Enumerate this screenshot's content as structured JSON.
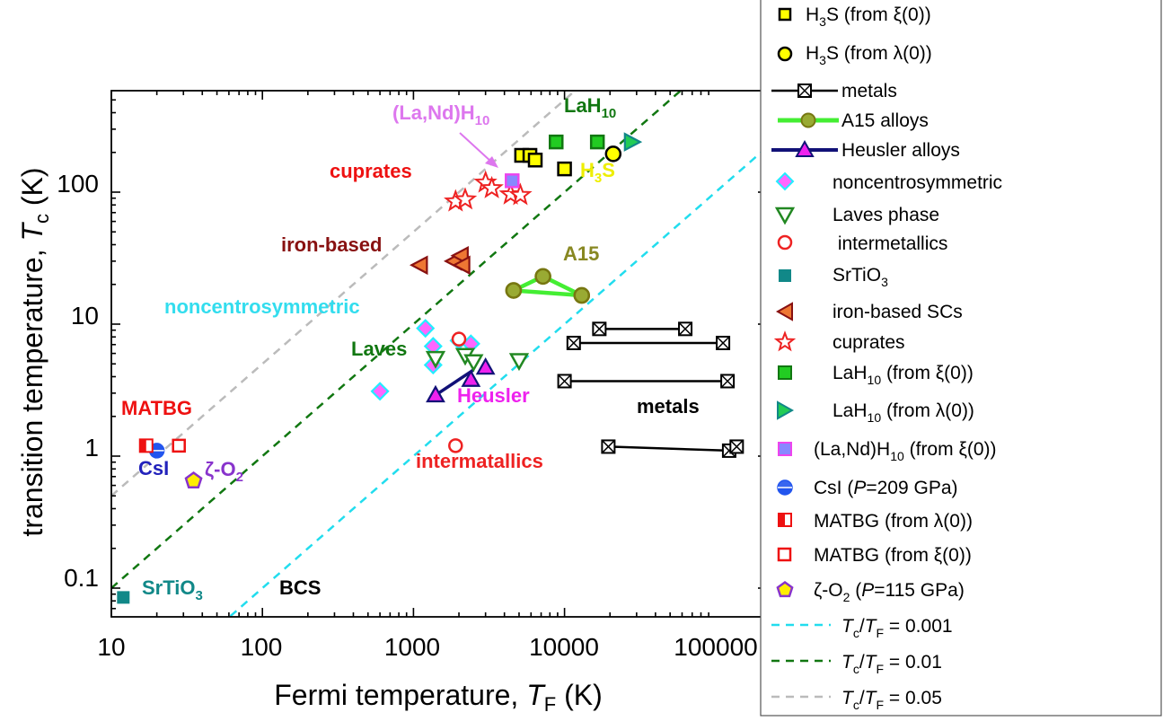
{
  "chart_data": {
    "type": "scatter",
    "xlabel": "Fermi temperature, T_F (K)",
    "ylabel": "transition temperature, T_c (K)",
    "xscale": "log",
    "yscale": "log",
    "xlim": [
      10,
      200000
    ],
    "ylim": [
      0.05,
      500
    ],
    "x_ticks": [
      10,
      100,
      1000,
      10000,
      100000
    ],
    "x_tick_labels": [
      "10",
      "100",
      "1000",
      "10000",
      "100000"
    ],
    "y_ticks": [
      0.1,
      1,
      10,
      100
    ],
    "y_tick_labels": [
      "0.1",
      "1",
      "10",
      "100"
    ],
    "grid": false,
    "legend_position": "outside-right",
    "reference_lines": [
      {
        "ratio": 0.001,
        "color": "#22ddee",
        "label": "T_c/T_F = 0.001"
      },
      {
        "ratio": 0.01,
        "color": "#117711",
        "label": "T_c/T_F = 0.01"
      },
      {
        "ratio": 0.05,
        "color": "#bbbbbb",
        "label": "T_c/T_F = 0.05"
      }
    ],
    "series": [
      {
        "name": "H3S (from ξ(0))",
        "marker": "square",
        "fill": "#ffff00",
        "stroke": "#000000",
        "points": [
          [
            5200,
            190
          ],
          [
            5900,
            190
          ],
          [
            6400,
            175
          ],
          [
            10000,
            150
          ]
        ]
      },
      {
        "name": "H3S (from λ(0))",
        "marker": "circle",
        "fill": "#ffff00",
        "stroke": "#000000",
        "points": [
          [
            21000,
            195
          ]
        ]
      },
      {
        "name": "metals",
        "marker": "boxx",
        "fill": "#ffffff",
        "stroke": "#000000",
        "segments": [
          [
            [
              17000,
              9.2
            ],
            [
              63000,
              9.2
            ]
          ],
          [
            [
              11500,
              7.2
            ],
            [
              112000,
              7.2
            ]
          ],
          [
            [
              10000,
              3.7
            ],
            [
              120000,
              3.7
            ]
          ],
          [
            [
              19500,
              1.18
            ],
            [
              123000,
              1.1
            ],
            [
              138000,
              1.18
            ]
          ]
        ]
      },
      {
        "name": "A15 alloys",
        "marker": "circle",
        "fill": "#99aa33",
        "stroke": "#777711",
        "segments": [
          [
            [
              4600,
              18
            ],
            [
              13000,
              16.5
            ]
          ],
          [
            [
              4600,
              18
            ],
            [
              7200,
              23
            ]
          ],
          [
            [
              7200,
              23
            ],
            [
              13000,
              16.5
            ]
          ]
        ]
      },
      {
        "name": "Heusler alloys",
        "marker": "triangle-up",
        "fill": "#ee22ee",
        "stroke": "#111177",
        "segments": [
          [
            [
              1400,
              2.9
            ],
            [
              2500,
              4.5
            ]
          ]
        ],
        "points": [
          [
            1400,
            2.9
          ],
          [
            2400,
            3.8
          ],
          [
            3000,
            4.7
          ]
        ]
      },
      {
        "name": "noncentrosymmetric",
        "marker": "diamond",
        "fill": "#ff66ff",
        "stroke": "#22eeff",
        "points": [
          [
            600,
            3.1
          ],
          [
            1200,
            9.3
          ],
          [
            1350,
            6.8
          ],
          [
            1350,
            4.9
          ],
          [
            2000,
            7.5
          ],
          [
            2400,
            7.1
          ]
        ]
      },
      {
        "name": "Laves phase",
        "marker": "triangle-down",
        "fill": "#ffffff",
        "stroke": "#228822",
        "points": [
          [
            1400,
            5.5
          ],
          [
            2200,
            5.8
          ],
          [
            2500,
            5.2
          ],
          [
            5000,
            5.3
          ]
        ]
      },
      {
        "name": "intermetallics",
        "marker": "circle-open",
        "fill": "#ffffff",
        "stroke": "#ee2222",
        "points": [
          [
            2000,
            7.7
          ],
          [
            1900,
            1.2
          ]
        ]
      },
      {
        "name": "SrTiO3",
        "marker": "square-solid",
        "fill": "#118888",
        "stroke": "#118888",
        "points": [
          [
            12,
            0.085
          ]
        ]
      },
      {
        "name": "iron-based SCs",
        "marker": "triangle-left",
        "fill": "#ee7733",
        "stroke": "#881111",
        "points": [
          [
            1100,
            28
          ],
          [
            1850,
            30
          ],
          [
            2050,
            33
          ],
          [
            2100,
            28
          ]
        ]
      },
      {
        "name": "cuprates",
        "marker": "star",
        "fill": "#ffffff",
        "stroke": "#ee2222",
        "points": [
          [
            1900,
            85
          ],
          [
            2200,
            88
          ],
          [
            3000,
            118
          ],
          [
            3300,
            107
          ],
          [
            4400,
            96
          ],
          [
            5100,
            95
          ]
        ]
      },
      {
        "name": "LaH10 (from ξ(0))",
        "marker": "square",
        "fill": "#22cc22",
        "stroke": "#117711",
        "points": [
          [
            8800,
            240
          ],
          [
            16500,
            240
          ]
        ]
      },
      {
        "name": "LaH10 (from λ(0))",
        "marker": "triangle-right",
        "fill": "#22cc55",
        "stroke": "#118888",
        "points": [
          [
            28000,
            240
          ]
        ]
      },
      {
        "name": "(La,Nd)H10 (from ξ(0))",
        "marker": "square",
        "fill": "#8888ff",
        "stroke": "#ee44ee",
        "points": [
          [
            4500,
            122
          ]
        ]
      },
      {
        "name": "CsI (P=209 GPa)",
        "marker": "circle-half",
        "fill": "#2255ee",
        "stroke": "#2255ee",
        "points": [
          [
            20,
            1.1
          ]
        ]
      },
      {
        "name": "MATBG (from λ(0))",
        "marker": "square-half",
        "fill": "#ee1111",
        "stroke": "#ee1111",
        "points": [
          [
            17,
            1.2
          ]
        ]
      },
      {
        "name": "MATBG (from ξ(0))",
        "marker": "square-open",
        "fill": "#ffffff",
        "stroke": "#ee1111",
        "points": [
          [
            28,
            1.2
          ]
        ]
      },
      {
        "name": "ζ-O2 (P=115 GPa)",
        "marker": "pentagon",
        "fill": "#ffee00",
        "stroke": "#8833cc",
        "points": [
          [
            35,
            0.65
          ]
        ]
      }
    ],
    "annotations": [
      {
        "text": "cuprates",
        "color": "#ee1111",
        "at": [
          1000,
          115
        ]
      },
      {
        "text": "iron-based",
        "color": "#881111",
        "at": [
          580,
          31
        ]
      },
      {
        "text": "noncentrosymmetric",
        "color": "#33ddee",
        "at": [
          160,
          10
        ]
      },
      {
        "text": "Laves",
        "color": "#117711",
        "at": [
          580,
          5.8
        ]
      },
      {
        "text": "Heusler",
        "color": "#ee22ee",
        "at": [
          1850,
          2.0
        ]
      },
      {
        "text": "intermatallics",
        "color": "#ee2222",
        "at": [
          1050,
          0.8
        ]
      },
      {
        "text": "metals",
        "color": "#000000",
        "at": [
          39000,
          1.7
        ]
      },
      {
        "text": "MATBG",
        "color": "#ee1111",
        "at": [
          14,
          1.7
        ]
      },
      {
        "text": "CsI",
        "color": "#2222bb",
        "at": [
          15,
          0.67
        ]
      },
      {
        "text": "BCS",
        "color": "#000000",
        "at": [
          85,
          0.07
        ]
      },
      {
        "text": "A15",
        "color": "#888822",
        "at": [
          9000,
          28
        ]
      },
      {
        "text": "H3S",
        "color": "#eeee00",
        "at": [
          11500,
          100
        ]
      },
      {
        "text": "LaH10",
        "color": "#117711",
        "at": [
          6500,
          300
        ]
      },
      {
        "text": "(La,Nd)H10",
        "color": "#dd77ee",
        "at": [
          800,
          240
        ]
      },
      {
        "text": "SrTiO3",
        "color": "#118888",
        "at": [
          14,
          0.085
        ]
      },
      {
        "text": "ζ-O2",
        "color": "#8833cc",
        "at": [
          40,
          0.67
        ]
      }
    ]
  }
}
